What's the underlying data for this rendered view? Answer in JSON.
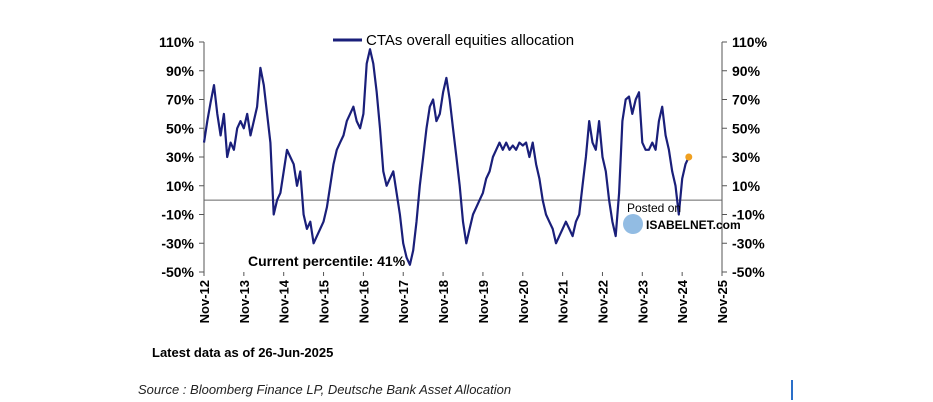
{
  "chart_data": {
    "type": "line",
    "series": [
      {
        "name": "CTAs overall equities allocation",
        "color": "#1a1f7a",
        "points": [
          [
            "2012-11",
            40
          ],
          [
            "2012-12",
            55
          ],
          [
            "2013-01",
            68
          ],
          [
            "2013-02",
            80
          ],
          [
            "2013-03",
            60
          ],
          [
            "2013-04",
            45
          ],
          [
            "2013-05",
            60
          ],
          [
            "2013-06",
            30
          ],
          [
            "2013-07",
            40
          ],
          [
            "2013-08",
            35
          ],
          [
            "2013-09",
            50
          ],
          [
            "2013-10",
            55
          ],
          [
            "2013-11",
            50
          ],
          [
            "2013-12",
            60
          ],
          [
            "2014-01",
            45
          ],
          [
            "2014-02",
            55
          ],
          [
            "2014-03",
            65
          ],
          [
            "2014-04",
            92
          ],
          [
            "2014-05",
            80
          ],
          [
            "2014-06",
            60
          ],
          [
            "2014-07",
            40
          ],
          [
            "2014-08",
            -10
          ],
          [
            "2014-09",
            0
          ],
          [
            "2014-10",
            5
          ],
          [
            "2014-11",
            20
          ],
          [
            "2014-12",
            35
          ],
          [
            "2015-01",
            30
          ],
          [
            "2015-02",
            25
          ],
          [
            "2015-03",
            10
          ],
          [
            "2015-04",
            20
          ],
          [
            "2015-05",
            -10
          ],
          [
            "2015-06",
            -20
          ],
          [
            "2015-07",
            -15
          ],
          [
            "2015-08",
            -30
          ],
          [
            "2015-09",
            -25
          ],
          [
            "2015-10",
            -20
          ],
          [
            "2015-11",
            -15
          ],
          [
            "2015-12",
            -5
          ],
          [
            "2016-01",
            10
          ],
          [
            "2016-02",
            25
          ],
          [
            "2016-03",
            35
          ],
          [
            "2016-04",
            40
          ],
          [
            "2016-05",
            45
          ],
          [
            "2016-06",
            55
          ],
          [
            "2016-07",
            60
          ],
          [
            "2016-08",
            65
          ],
          [
            "2016-09",
            55
          ],
          [
            "2016-10",
            50
          ],
          [
            "2016-11",
            60
          ],
          [
            "2016-12",
            95
          ],
          [
            "2017-01",
            105
          ],
          [
            "2017-02",
            95
          ],
          [
            "2017-03",
            75
          ],
          [
            "2017-04",
            50
          ],
          [
            "2017-05",
            20
          ],
          [
            "2017-06",
            10
          ],
          [
            "2017-07",
            15
          ],
          [
            "2017-08",
            20
          ],
          [
            "2017-09",
            5
          ],
          [
            "2017-10",
            -10
          ],
          [
            "2017-11",
            -30
          ],
          [
            "2017-12",
            -40
          ],
          [
            "2018-01",
            -45
          ],
          [
            "2018-02",
            -35
          ],
          [
            "2018-03",
            -15
          ],
          [
            "2018-04",
            10
          ],
          [
            "2018-05",
            30
          ],
          [
            "2018-06",
            50
          ],
          [
            "2018-07",
            65
          ],
          [
            "2018-08",
            70
          ],
          [
            "2018-09",
            55
          ],
          [
            "2018-10",
            60
          ],
          [
            "2018-11",
            75
          ],
          [
            "2018-12",
            85
          ],
          [
            "2019-01",
            70
          ],
          [
            "2019-02",
            50
          ],
          [
            "2019-03",
            30
          ],
          [
            "2019-04",
            10
          ],
          [
            "2019-05",
            -15
          ],
          [
            "2019-06",
            -30
          ],
          [
            "2019-07",
            -20
          ],
          [
            "2019-08",
            -10
          ],
          [
            "2019-09",
            -5
          ],
          [
            "2019-10",
            0
          ],
          [
            "2019-11",
            5
          ],
          [
            "2019-12",
            15
          ],
          [
            "2020-01",
            20
          ],
          [
            "2020-02",
            30
          ],
          [
            "2020-03",
            35
          ],
          [
            "2020-04",
            40
          ],
          [
            "2020-05",
            35
          ],
          [
            "2020-06",
            40
          ],
          [
            "2020-07",
            35
          ],
          [
            "2020-08",
            38
          ],
          [
            "2020-09",
            35
          ],
          [
            "2020-10",
            40
          ],
          [
            "2020-11",
            38
          ],
          [
            "2020-12",
            40
          ],
          [
            "2021-01",
            30
          ],
          [
            "2021-02",
            40
          ],
          [
            "2021-03",
            25
          ],
          [
            "2021-04",
            15
          ],
          [
            "2021-05",
            0
          ],
          [
            "2021-06",
            -10
          ],
          [
            "2021-07",
            -15
          ],
          [
            "2021-08",
            -20
          ],
          [
            "2021-09",
            -30
          ],
          [
            "2021-10",
            -25
          ],
          [
            "2021-11",
            -20
          ],
          [
            "2021-12",
            -15
          ],
          [
            "2022-01",
            -20
          ],
          [
            "2022-02",
            -25
          ],
          [
            "2022-03",
            -15
          ],
          [
            "2022-04",
            -10
          ],
          [
            "2022-05",
            10
          ],
          [
            "2022-06",
            30
          ],
          [
            "2022-07",
            55
          ],
          [
            "2022-08",
            40
          ],
          [
            "2022-09",
            35
          ],
          [
            "2022-10",
            55
          ],
          [
            "2022-11",
            30
          ],
          [
            "2022-12",
            20
          ],
          [
            "2023-01",
            0
          ],
          [
            "2023-02",
            -15
          ],
          [
            "2023-03",
            -25
          ],
          [
            "2023-04",
            5
          ],
          [
            "2023-05",
            55
          ],
          [
            "2023-06",
            70
          ],
          [
            "2023-07",
            72
          ],
          [
            "2023-08",
            60
          ],
          [
            "2023-09",
            70
          ],
          [
            "2023-10",
            75
          ],
          [
            "2023-11",
            40
          ],
          [
            "2023-12",
            35
          ],
          [
            "2024-01",
            35
          ],
          [
            "2024-02",
            40
          ],
          [
            "2024-03",
            35
          ],
          [
            "2024-04",
            55
          ],
          [
            "2024-05",
            65
          ],
          [
            "2024-06",
            45
          ],
          [
            "2024-07",
            35
          ],
          [
            "2024-08",
            20
          ],
          [
            "2024-09",
            10
          ],
          [
            "2024-10",
            -10
          ],
          [
            "2024-11",
            15
          ],
          [
            "2024-12",
            25
          ],
          [
            "2025-01",
            30
          ]
        ]
      }
    ],
    "current_point": {
      "x": "2025-01",
      "y": 30,
      "color": "#f0a020"
    },
    "title": "",
    "xlabel": "",
    "ylabel": "",
    "xlim": [
      "2012-11",
      "2025-11"
    ],
    "ylim": [
      -50,
      110
    ],
    "y_ticks": [
      110,
      90,
      70,
      50,
      30,
      10,
      -10,
      -30,
      -50
    ],
    "y_tick_labels": [
      "110%",
      "90%",
      "70%",
      "50%",
      "30%",
      "10%",
      "-10%",
      "-30%",
      "-50%"
    ],
    "x_ticks": [
      "2012-11",
      "2013-11",
      "2014-11",
      "2015-11",
      "2016-11",
      "2017-11",
      "2018-11",
      "2019-11",
      "2020-11",
      "2021-11",
      "2022-11",
      "2023-11",
      "2024-11",
      "2025-11"
    ],
    "x_tick_labels": [
      "Nov-12",
      "Nov-13",
      "Nov-14",
      "Nov-15",
      "Nov-16",
      "Nov-17",
      "Nov-18",
      "Nov-19",
      "Nov-20",
      "Nov-21",
      "Nov-22",
      "Nov-23",
      "Nov-24",
      "Nov-25"
    ],
    "zero_line": 0,
    "grid": false,
    "legend_position": "top-center",
    "annotation": "Current percentile: 41%",
    "watermark": [
      "Posted on",
      "ISABELNET.com"
    ]
  },
  "footnote": "Latest data as of 26-Jun-2025",
  "source": "Source : Bloomberg Finance LP, Deutsche Bank Asset Allocation"
}
